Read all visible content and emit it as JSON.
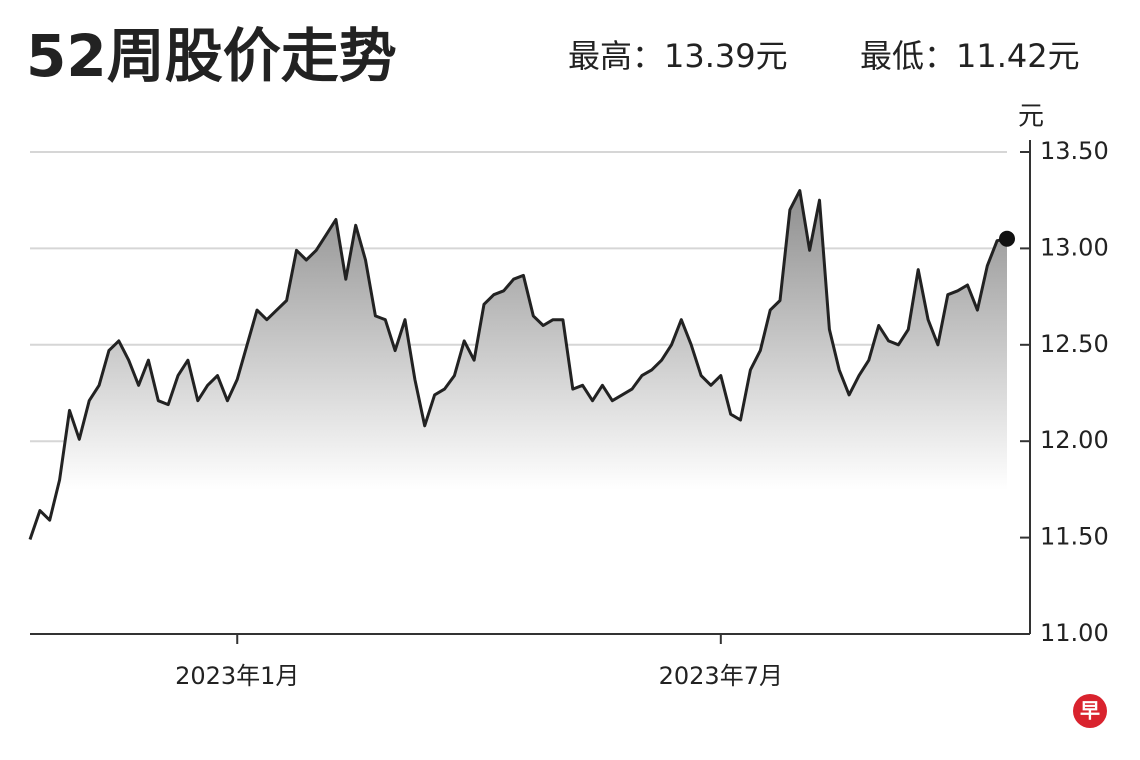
{
  "chart_data": {
    "type": "line",
    "title": "52周股价走势",
    "high_label": "最高：13.39元",
    "low_label": "最低：11.42元",
    "y_label": "元",
    "logo": "早",
    "categories": [
      null,
      null,
      null,
      null,
      null,
      null,
      null,
      null,
      null,
      null,
      null,
      null,
      null,
      null,
      null,
      null,
      null,
      null,
      null,
      null,
      null,
      "2023年1月",
      null,
      null,
      null,
      null,
      null,
      null,
      null,
      null,
      null,
      null,
      null,
      null,
      null,
      null,
      null,
      null,
      null,
      null,
      null,
      null,
      null,
      null,
      null,
      null,
      null,
      null,
      null,
      null,
      null,
      null,
      null,
      null,
      null,
      null,
      null,
      null,
      null,
      null,
      null,
      null,
      null,
      null,
      null,
      null,
      null,
      null,
      null,
      null,
      "2023年7月",
      null,
      null,
      null,
      null,
      null,
      null,
      null,
      null,
      null,
      null,
      null,
      null,
      null,
      null,
      null,
      null,
      null,
      null,
      null,
      null,
      null,
      null,
      null,
      null,
      null,
      null,
      null,
      null,
      null
    ],
    "series": [
      {
        "name": "股价",
        "color": "#222222",
        "values": [
          11.49,
          11.64,
          11.59,
          11.8,
          12.16,
          12.01,
          12.21,
          12.29,
          12.47,
          12.52,
          12.42,
          12.29,
          12.42,
          12.21,
          12.19,
          12.34,
          12.42,
          12.21,
          12.29,
          12.34,
          12.21,
          12.32,
          12.5,
          12.68,
          12.63,
          12.68,
          12.73,
          12.99,
          12.94,
          12.99,
          13.07,
          13.15,
          12.84,
          13.12,
          12.94,
          12.65,
          12.63,
          12.47,
          12.63,
          12.32,
          12.08,
          12.24,
          12.27,
          12.34,
          12.52,
          12.42,
          12.71,
          12.76,
          12.78,
          12.84,
          12.86,
          12.65,
          12.6,
          12.63,
          12.63,
          12.27,
          12.29,
          12.21,
          12.29,
          12.21,
          12.24,
          12.27,
          12.34,
          12.37,
          12.42,
          12.5,
          12.63,
          12.5,
          12.34,
          12.29,
          12.34,
          12.14,
          12.11,
          12.37,
          12.47,
          12.68,
          12.73,
          13.2,
          13.3,
          12.99,
          13.25,
          12.58,
          12.37,
          12.24,
          12.34,
          12.42,
          12.6,
          12.52,
          12.5,
          12.58,
          12.89,
          12.63,
          12.5,
          12.76,
          12.78,
          12.81,
          12.68,
          12.91,
          13.04,
          13.05
        ]
      }
    ],
    "ylim": [
      11,
      13.5
    ],
    "yticks": [
      {
        "value": 11,
        "label": "11.00"
      },
      {
        "value": 11.5,
        "label": "11.50"
      },
      {
        "value": 12,
        "label": "12.00"
      },
      {
        "value": 12.5,
        "label": "12.50"
      },
      {
        "value": 13,
        "label": "13.00"
      },
      {
        "value": 13.5,
        "label": "13.50"
      }
    ],
    "grid": true
  }
}
